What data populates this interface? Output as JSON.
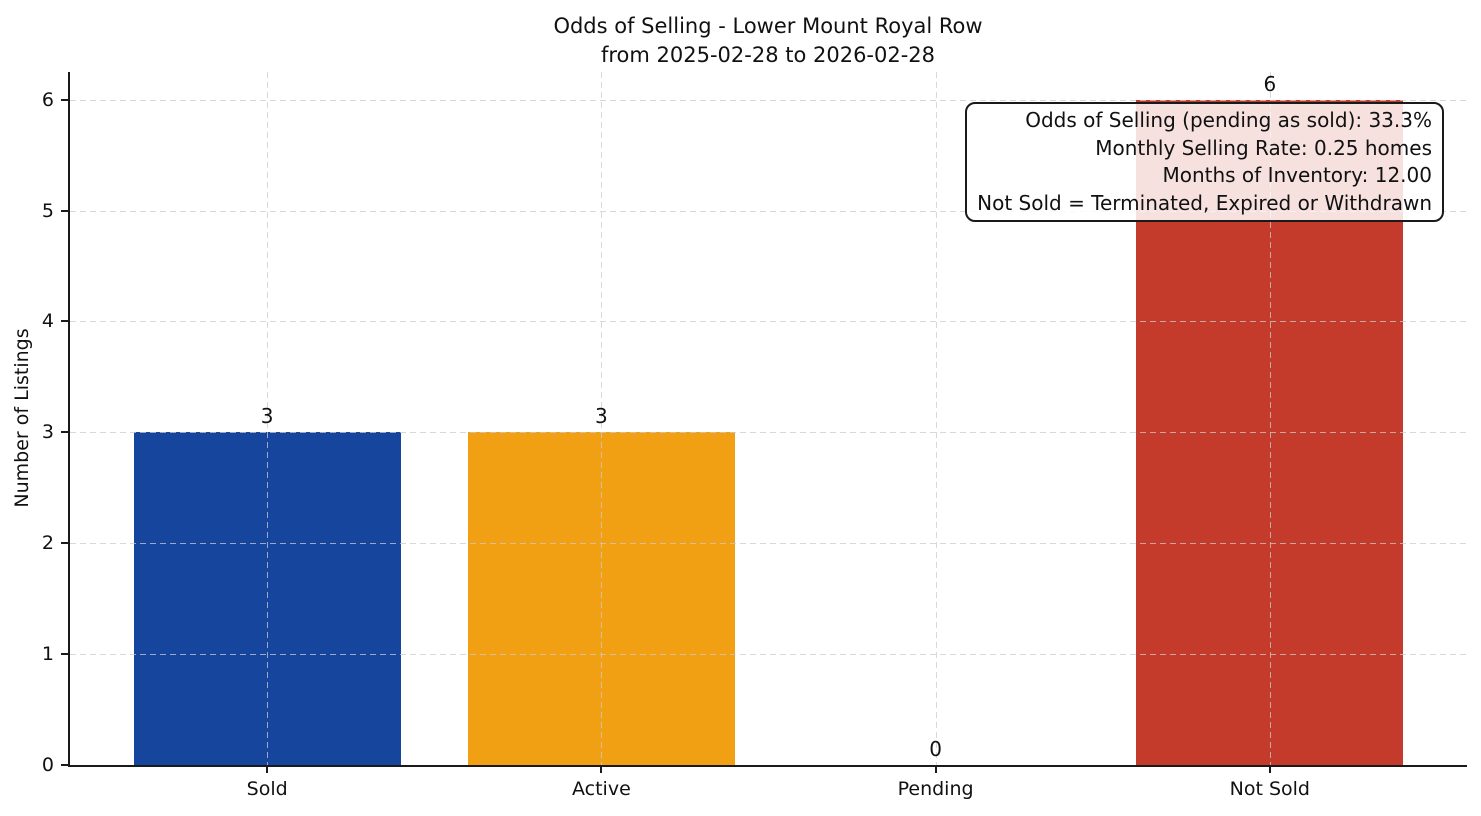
{
  "chart_data": {
    "type": "bar",
    "title": "Odds of Selling - Lower Mount Royal Row\nfrom 2025-02-28 to 2026-02-28",
    "title_line1": "Odds of Selling - Lower Mount Royal Row",
    "title_line2": "from 2025-02-28 to 2026-02-28",
    "categories": [
      "Sold",
      "Active",
      "Pending",
      "Not Sold"
    ],
    "values": [
      3,
      3,
      0,
      6
    ],
    "value_labels": [
      "3",
      "3",
      "0",
      "6"
    ],
    "bar_colors": [
      "#15459d",
      "#f2a013",
      null,
      "#c43b2c"
    ],
    "xlabel": "",
    "ylabel": "Number of Listings",
    "yticks": [
      0,
      1,
      2,
      3,
      4,
      5,
      6
    ],
    "ylim": [
      0,
      6.25
    ],
    "grid": true,
    "grid_style": "dashed",
    "legend_position": "none",
    "annotation": {
      "position": "top-right",
      "lines": [
        "Odds of Selling (pending as sold): 33.3%",
        "Monthly Selling Rate: 0.25 homes",
        "Months of Inventory: 12.00",
        "Not Sold = Terminated, Expired or Withdrawn"
      ]
    }
  }
}
